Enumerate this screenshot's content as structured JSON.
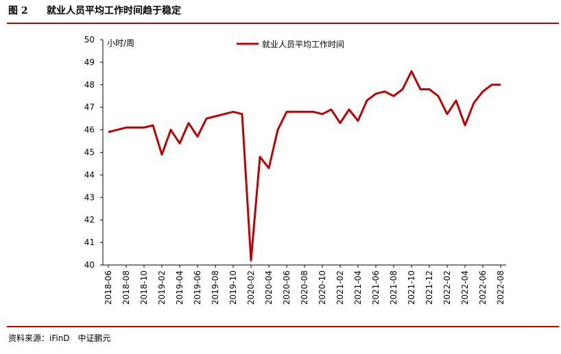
{
  "header": {
    "figure": "图 2",
    "title": "就业人员平均工作时间趋于稳定"
  },
  "chart_data": {
    "type": "line",
    "y_label": "小时/周",
    "categories": [
      "2018-06",
      null,
      "2018-08",
      null,
      "2018-10",
      null,
      "2019-02",
      null,
      "2019-04",
      null,
      "2019-06",
      null,
      "2019-08",
      null,
      "2019-10",
      null,
      "2020-02",
      null,
      "2020-04",
      null,
      "2020-06",
      null,
      "2020-08",
      null,
      "2020-10",
      null,
      "2021-02",
      null,
      "2021-04",
      null,
      "2021-06",
      null,
      "2021-08",
      null,
      "2021-10",
      null,
      "2021-12",
      null,
      "2022-02",
      null,
      "2022-04",
      null,
      "2022-06",
      null,
      "2022-08"
    ],
    "series": [
      {
        "name": "就业人员平均工作时间",
        "color": "#c00000",
        "values": [
          45.9,
          46.0,
          46.1,
          46.1,
          46.1,
          46.2,
          44.9,
          46.0,
          45.4,
          46.3,
          45.7,
          46.5,
          46.6,
          46.7,
          46.8,
          46.7,
          40.2,
          44.8,
          44.3,
          46.0,
          46.8,
          46.8,
          46.8,
          46.8,
          46.7,
          46.9,
          46.3,
          46.9,
          46.4,
          47.3,
          47.6,
          47.7,
          47.5,
          47.8,
          48.6,
          47.8,
          47.8,
          47.5,
          46.7,
          47.3,
          46.2,
          47.2,
          47.7,
          48.0,
          48.0
        ]
      }
    ],
    "ylim": [
      40,
      50
    ],
    "yticks": [
      40,
      41,
      42,
      43,
      44,
      45,
      46,
      47,
      48,
      49,
      50
    ]
  },
  "footer": {
    "source": "资料来源：iFinD　中证鹏元"
  }
}
